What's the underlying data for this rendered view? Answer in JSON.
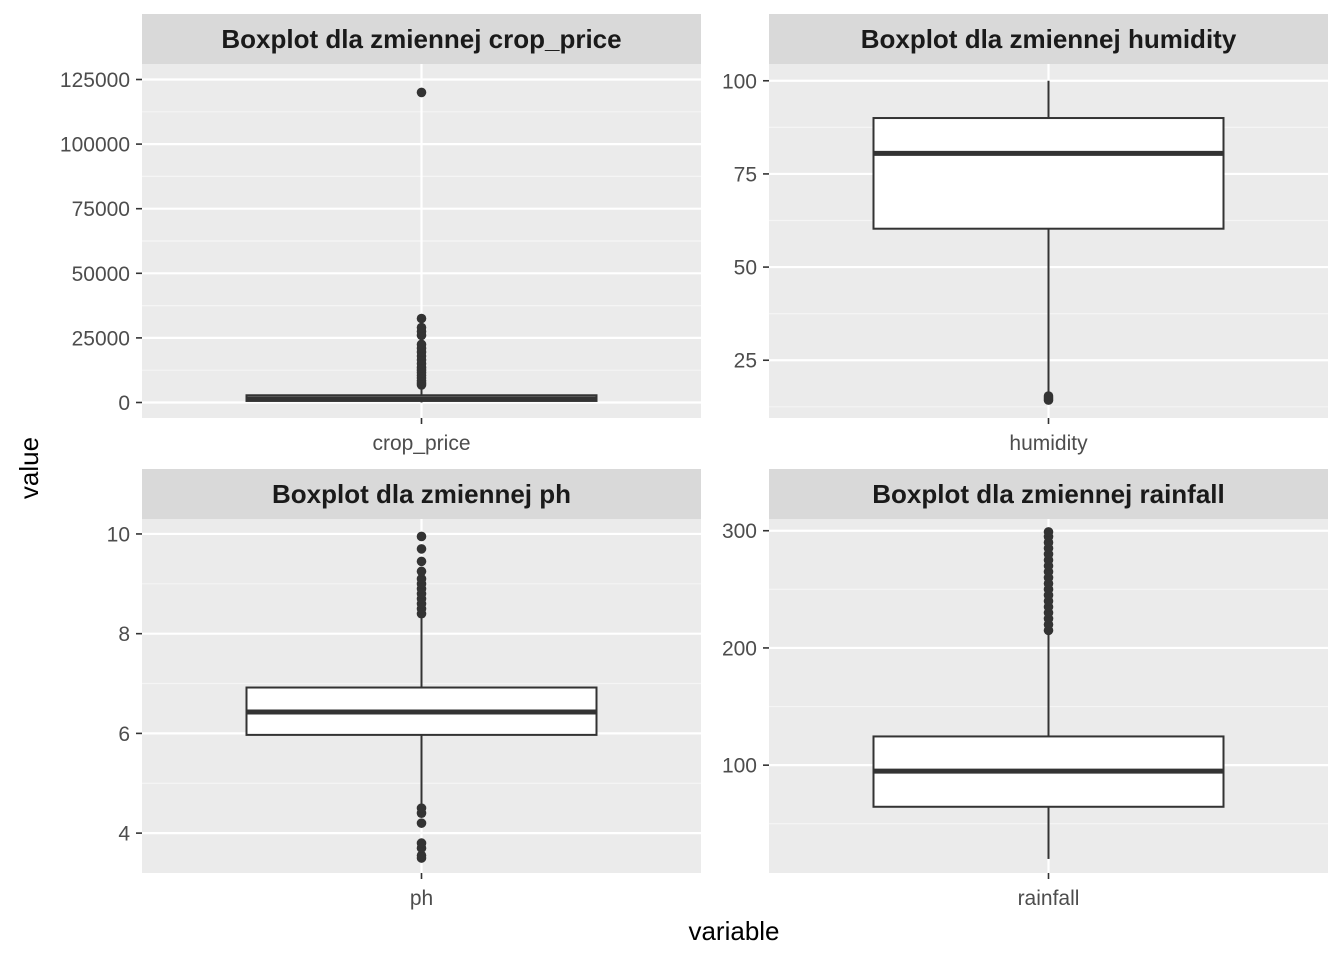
{
  "x_axis_title": "variable",
  "y_axis_title": "value",
  "colors": {
    "panel_bg": "#ebebeb",
    "strip_bg": "#d9d9d9",
    "grid_major": "#ffffff",
    "grid_minor": "#f5f5f5",
    "box_fill": "#ffffff",
    "box_line": "#333333",
    "tick_text": "#4d4d4d"
  },
  "chart_data": [
    {
      "type": "boxplot",
      "title": "Boxplot dla zmiennej crop_price",
      "category": "crop_price",
      "ylim": [
        -6000,
        131000
      ],
      "yticks": [
        0,
        25000,
        50000,
        75000,
        100000,
        125000
      ],
      "stats": {
        "lower_whisker": 0,
        "q1": 600,
        "median": 1400,
        "q3": 2800,
        "upper_whisker": 5800
      },
      "outliers": [
        6800,
        7500,
        8500,
        9500,
        10500,
        11500,
        12500,
        13500,
        15000,
        16500,
        18000,
        19500,
        21000,
        22500,
        26000,
        27500,
        29000,
        32500,
        120000
      ]
    },
    {
      "type": "boxplot",
      "title": "Boxplot dla zmiennej humidity",
      "category": "humidity",
      "ylim": [
        9.5,
        104.5
      ],
      "yticks": [
        25,
        50,
        75,
        100
      ],
      "stats": {
        "lower_whisker": 16,
        "q1": 60.3,
        "median": 80.5,
        "q3": 90.0,
        "upper_whisker": 100
      },
      "outliers": [
        14.3,
        14.9,
        15.4
      ]
    },
    {
      "type": "boxplot",
      "title": "Boxplot dla zmiennej ph",
      "category": "ph",
      "ylim": [
        3.2,
        10.3
      ],
      "yticks": [
        4,
        6,
        8,
        10
      ],
      "stats": {
        "lower_whisker": 4.55,
        "q1": 5.97,
        "median": 6.43,
        "q3": 6.92,
        "upper_whisker": 8.35
      },
      "outliers": [
        3.5,
        3.55,
        3.7,
        3.8,
        4.2,
        4.4,
        4.5,
        8.4,
        8.5,
        8.6,
        8.7,
        8.8,
        8.9,
        9.0,
        9.1,
        9.25,
        9.45,
        9.7,
        9.95
      ]
    },
    {
      "type": "boxplot",
      "title": "Boxplot dla zmiennej rainfall",
      "category": "rainfall",
      "ylim": [
        8,
        310
      ],
      "yticks": [
        100,
        200,
        300
      ],
      "stats": {
        "lower_whisker": 20,
        "q1": 64.5,
        "median": 94.9,
        "q3": 124.5,
        "upper_whisker": 213
      },
      "outliers": [
        215,
        220,
        225,
        230,
        235,
        240,
        245,
        250,
        255,
        260,
        265,
        270,
        275,
        280,
        285,
        290,
        295,
        299
      ]
    }
  ]
}
